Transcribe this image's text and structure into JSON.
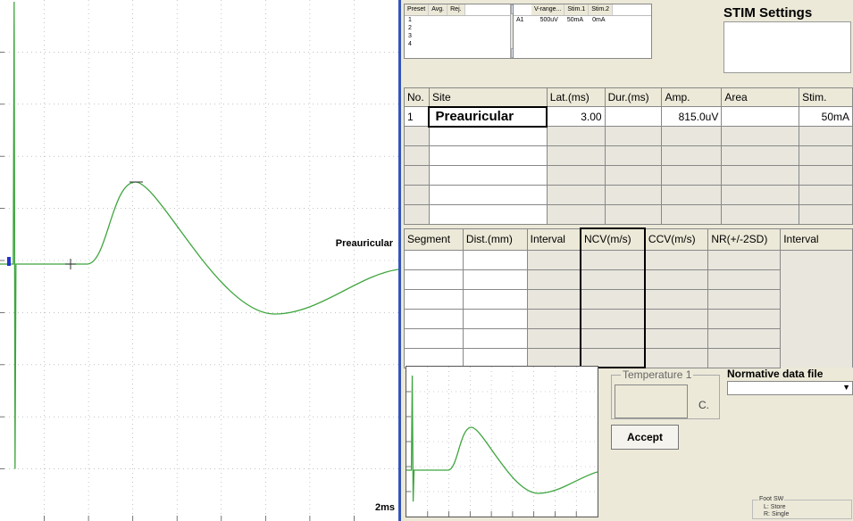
{
  "trace": {
    "site_label": "Preauricular",
    "scale_label": "2ms"
  },
  "preset": {
    "headers": [
      "Preset",
      "Avg.",
      "Rej."
    ],
    "rows": [
      "1",
      "2",
      "3",
      "4"
    ]
  },
  "stim": {
    "headers": [
      "V-range...",
      "Stim.1",
      "Stim.2"
    ],
    "row": {
      "channel": "A1",
      "vrange": "500uV",
      "stim1": "50mA",
      "stim2": "0mA"
    }
  },
  "stim_settings": {
    "title": "STIM Settings"
  },
  "site_table": {
    "headers": [
      "No.",
      "Site",
      "Lat.(ms)",
      "Dur.(ms)",
      "Amp.",
      "Area",
      "Stim."
    ],
    "row1": {
      "no": "1",
      "site": "Preauricular",
      "lat": "3.00",
      "dur": "",
      "amp": "815.0uV",
      "area": "",
      "stim": "50mA"
    }
  },
  "segment_table": {
    "headers": [
      "Segment",
      "Dist.(mm)",
      "Interval",
      "NCV(m/s)",
      "CCV(m/s)",
      "NR(+/-2SD)",
      "Interval"
    ]
  },
  "temperature": {
    "title": "Temperature 1",
    "unit": "C."
  },
  "accept": {
    "label": "Accept"
  },
  "normative": {
    "title": "Normative data file",
    "value": ""
  },
  "foot_switch": {
    "title": "Foot SW",
    "left": "L: Store",
    "right": "R: Single"
  },
  "colors": {
    "trace": "#3ea53e",
    "grid": "#9aa0a8",
    "frame_accent": "#3355bb"
  }
}
